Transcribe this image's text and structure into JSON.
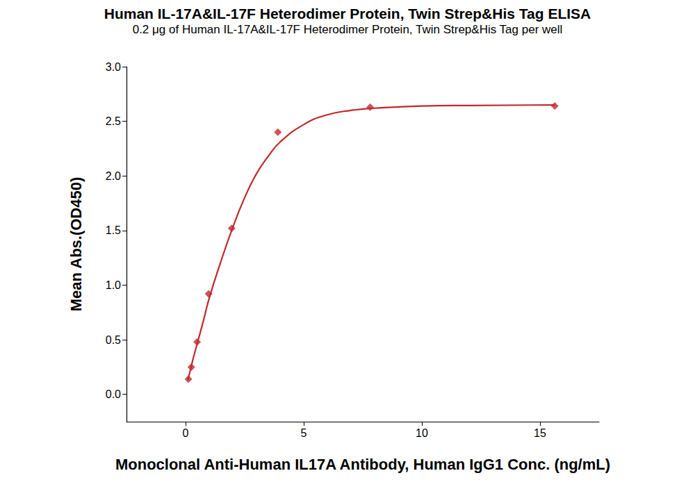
{
  "chart_data": {
    "type": "scatter",
    "title": "Human IL-17A&IL-17F Heterodimer Protein, Twin Strep&His Tag ELISA",
    "subtitle": "0.2 μg of Human IL-17A&IL-17F Heterodimer Protein, Twin Strep&His Tag per well",
    "x_label": "Monoclonal Anti-Human IL17A Antibody, Human IgG1 Conc. (ng/mL)",
    "y_label": "Mean Abs.(OD450)",
    "series": [
      {
        "type": "scatter",
        "marker": "diamond",
        "color": "#c0282c",
        "x": [
          0.122,
          0.244,
          0.488,
          0.977,
          1.953,
          3.906,
          7.8125,
          15.625
        ],
        "values": [
          0.14,
          0.25,
          0.48,
          0.92,
          1.52,
          2.4,
          2.63,
          2.64
        ]
      },
      {
        "type": "line",
        "line_style": "solid",
        "color": "#c0282c",
        "x": [
          0.1,
          0.3,
          0.5,
          0.75,
          1,
          1.5,
          2,
          2.5,
          3,
          3.5,
          4,
          5,
          6,
          7,
          8,
          10,
          12,
          15.625
        ],
        "values": [
          0.13,
          0.31,
          0.47,
          0.67,
          0.88,
          1.22,
          1.53,
          1.8,
          2.02,
          2.18,
          2.31,
          2.47,
          2.56,
          2.6,
          2.62,
          2.64,
          2.645,
          2.65
        ]
      }
    ],
    "xlim": [
      -2.5,
      17.5
    ],
    "xticks": [
      0,
      5,
      10,
      15
    ],
    "ylim": [
      -0.25,
      3.0
    ],
    "yticks": [
      {
        "value": 0,
        "label": "0.0"
      },
      0.5,
      {
        "value": 1,
        "label": "1.0"
      },
      1.5,
      {
        "value": 2,
        "label": "2.0"
      },
      2.5,
      {
        "value": 3,
        "label": "3.0"
      }
    ],
    "grid": false
  }
}
